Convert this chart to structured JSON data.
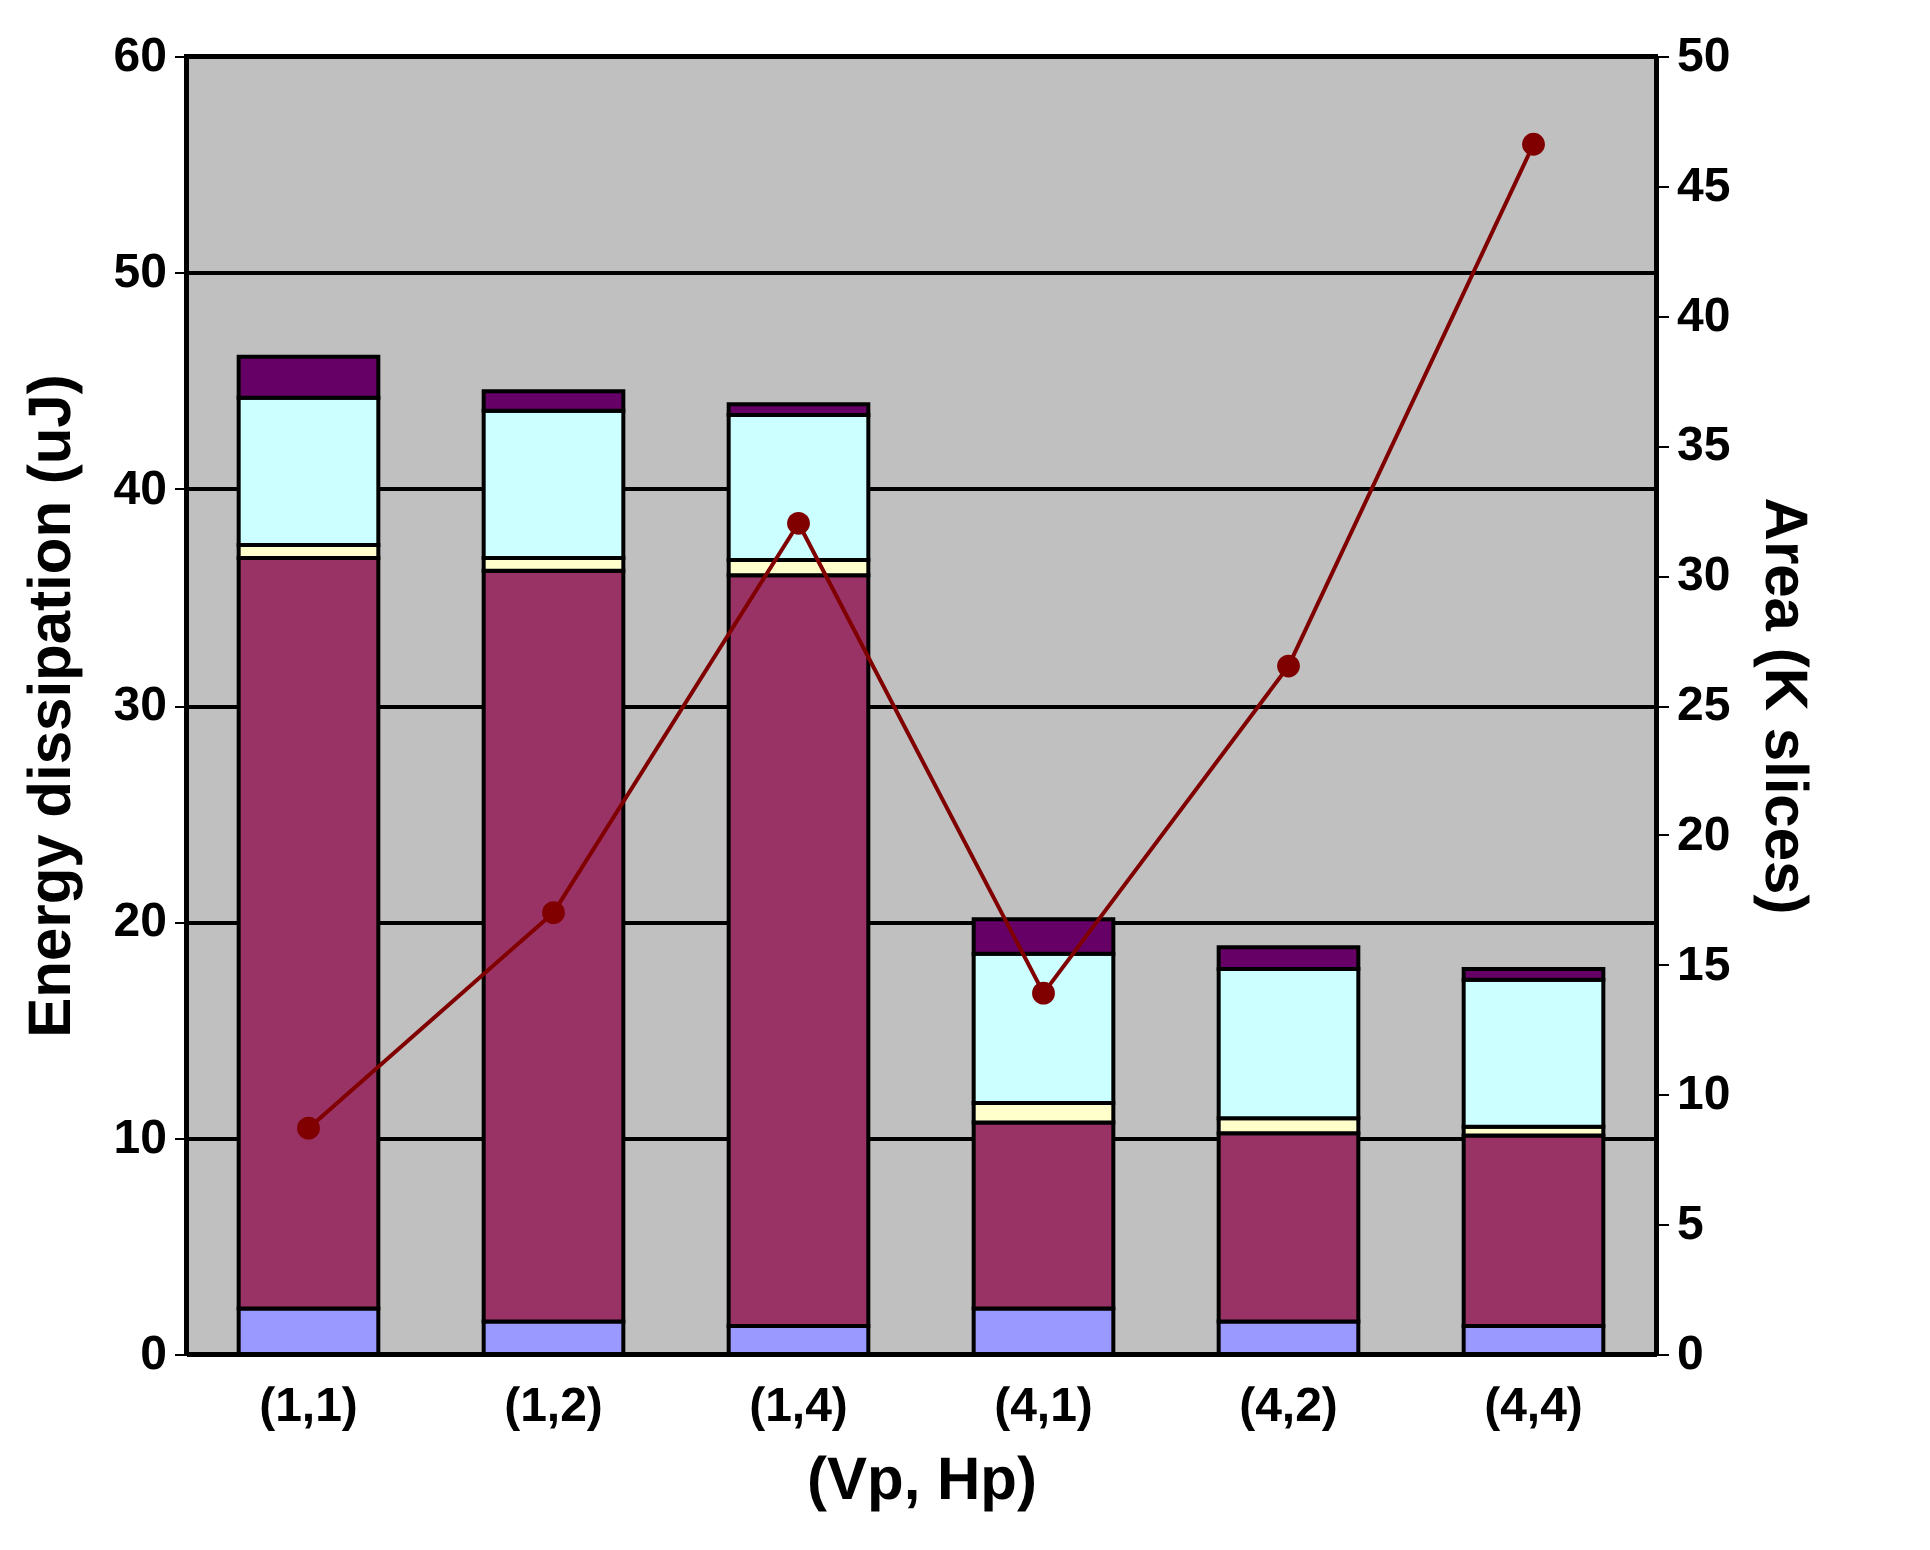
{
  "chart_data": {
    "type": "bar",
    "stacked": true,
    "xlabel": "(Vp, Hp)",
    "ylabel": "Energy dissipation (uJ)",
    "y2label": "Area (K slices)",
    "categories": [
      "(1,1)",
      "(1,2)",
      "(1,4)",
      "(4,1)",
      "(4,2)",
      "(4,4)"
    ],
    "series": [
      {
        "color": "#9999ff",
        "values": [
          2.1,
          1.5,
          1.3,
          2.1,
          1.5,
          1.3
        ]
      },
      {
        "color": "#993366",
        "values": [
          34.7,
          34.7,
          34.7,
          8.6,
          8.7,
          8.8
        ]
      },
      {
        "color": "#ffffcc",
        "values": [
          0.6,
          0.6,
          0.7,
          0.9,
          0.7,
          0.4
        ]
      },
      {
        "color": "#ccffff",
        "values": [
          6.8,
          6.8,
          6.7,
          6.9,
          6.9,
          6.8
        ]
      },
      {
        "color": "#660066",
        "values": [
          1.9,
          0.9,
          0.5,
          1.6,
          1.0,
          0.5
        ]
      },
      {
        "type": "line",
        "axis": "y2",
        "color": "#800000",
        "values": [
          8.7,
          17.0,
          32.0,
          13.9,
          26.5,
          46.6
        ]
      }
    ],
    "ylim": [
      0,
      60
    ],
    "yticks": [
      0,
      10,
      20,
      30,
      40,
      50,
      60
    ],
    "y2lim": [
      0,
      50
    ],
    "y2ticks": [
      0,
      5,
      10,
      15,
      20,
      25,
      30,
      35,
      40,
      45,
      50
    ],
    "grid": "y",
    "marker": "circle",
    "line_style": "solid",
    "legend": false
  }
}
